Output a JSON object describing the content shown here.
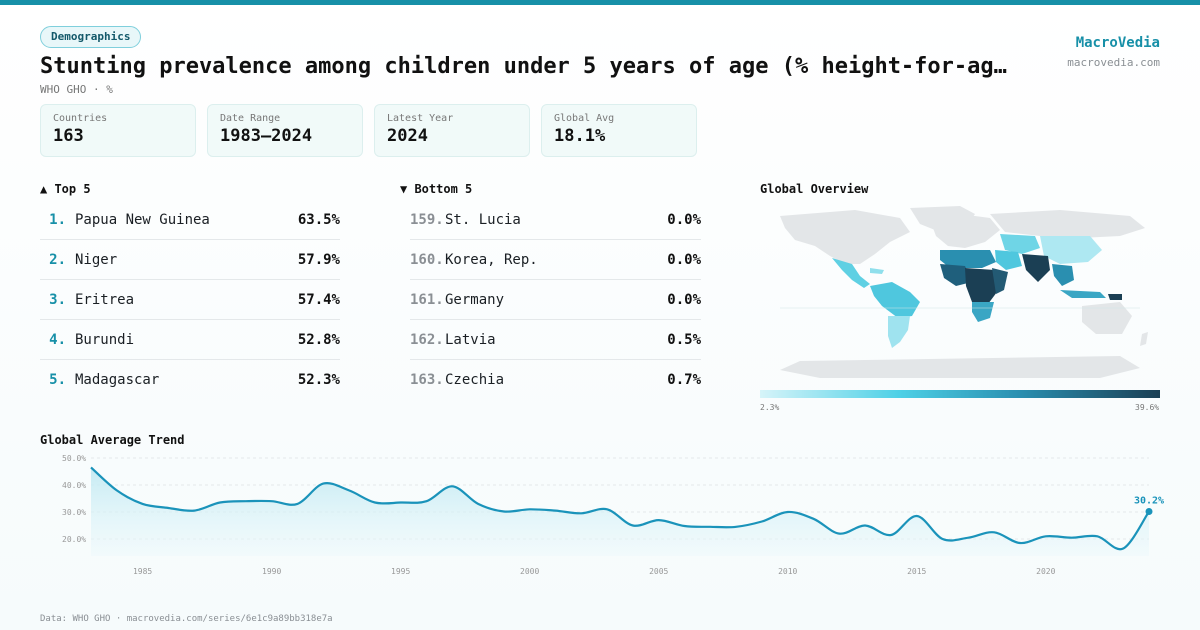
{
  "header": {
    "badge": "Demographics",
    "title": "Stunting prevalence among children under 5 years of age (% height-for-ag…",
    "subtitle": "WHO GHO · %"
  },
  "brand": {
    "name": "MacroVedia",
    "url": "macrovedia.com"
  },
  "stats": [
    {
      "label": "Countries",
      "value": "163"
    },
    {
      "label": "Date Range",
      "value": "1983–2024"
    },
    {
      "label": "Latest Year",
      "value": "2024"
    },
    {
      "label": "Global Avg",
      "value": "18.1%"
    }
  ],
  "top5": {
    "heading": "▲ Top 5",
    "rows": [
      {
        "rank": "1.",
        "name": "Papua New Guinea",
        "value": "63.5%"
      },
      {
        "rank": "2.",
        "name": "Niger",
        "value": "57.9%"
      },
      {
        "rank": "3.",
        "name": "Eritrea",
        "value": "57.4%"
      },
      {
        "rank": "4.",
        "name": "Burundi",
        "value": "52.8%"
      },
      {
        "rank": "5.",
        "name": "Madagascar",
        "value": "52.3%"
      }
    ]
  },
  "bottom5": {
    "heading": "▼ Bottom 5",
    "rows": [
      {
        "rank": "159.",
        "name": "St. Lucia",
        "value": "0.0%"
      },
      {
        "rank": "160.",
        "name": "Korea, Rep.",
        "value": "0.0%"
      },
      {
        "rank": "161.",
        "name": "Germany",
        "value": "0.0%"
      },
      {
        "rank": "162.",
        "name": "Latvia",
        "value": "0.5%"
      },
      {
        "rank": "163.",
        "name": "Czechia",
        "value": "0.7%"
      }
    ]
  },
  "map": {
    "heading": "Global Overview",
    "legend_min": "2.3%",
    "legend_max": "39.6%",
    "colors": {
      "low": "#d6f4f9",
      "mid": "#4dd0e6",
      "high": "#1b3f54",
      "nodata": "#e3e6e8"
    }
  },
  "trend_heading": "Global Average Trend",
  "footer": "Data: WHO GHO · macrovedia.com/series/6e1c9a89bb318e7a",
  "colors": {
    "accent": "#1790a8",
    "line": "#1a93ba"
  },
  "chart_data": {
    "type": "area",
    "title": "Global Average Trend",
    "xlabel": "",
    "ylabel": "",
    "xlim": [
      1983,
      2024
    ],
    "ylim": [
      15,
      50
    ],
    "yticks": [
      20,
      30,
      40,
      50
    ],
    "ytick_labels": [
      "20.0%",
      "30.0%",
      "40.0%",
      "50.0%"
    ],
    "xticks": [
      1985,
      1990,
      1995,
      2000,
      2005,
      2010,
      2015,
      2020
    ],
    "grid": true,
    "end_label": "30.2%",
    "x": [
      1983,
      1984,
      1985,
      1986,
      1987,
      1988,
      1989,
      1990,
      1991,
      1992,
      1993,
      1994,
      1995,
      1996,
      1997,
      1998,
      1999,
      2000,
      2001,
      2002,
      2003,
      2004,
      2005,
      2006,
      2007,
      2008,
      2009,
      2010,
      2011,
      2012,
      2013,
      2014,
      2015,
      2016,
      2017,
      2018,
      2019,
      2020,
      2021,
      2022,
      2023,
      2024
    ],
    "values": [
      46.5,
      38.0,
      33.0,
      31.5,
      30.5,
      33.5,
      34.0,
      34.0,
      33.0,
      40.5,
      38.0,
      33.5,
      33.5,
      34.0,
      39.5,
      33.0,
      30.2,
      31.0,
      30.5,
      29.5,
      31.0,
      25.0,
      27.0,
      24.8,
      24.5,
      24.5,
      26.5,
      30.0,
      27.5,
      22.0,
      25.0,
      21.5,
      28.5,
      20.0,
      20.5,
      22.5,
      18.5,
      21.0,
      20.5,
      21.0,
      16.5,
      30.2
    ]
  }
}
